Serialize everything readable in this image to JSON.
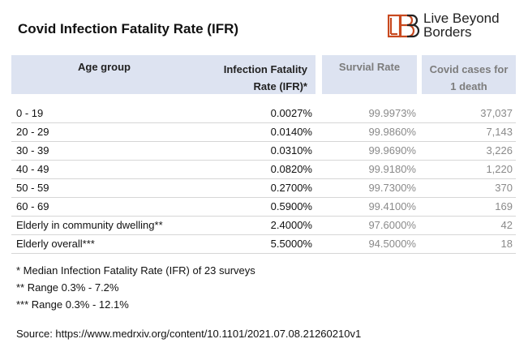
{
  "title": "Covid Infection Fatality Rate (IFR)",
  "logo": {
    "mark": "LBB",
    "line1": "Live Beyond",
    "line2": "Borders",
    "color": "#c8491f"
  },
  "header": {
    "age_group": "Age  group",
    "ifr_line1": "Infection Fatality",
    "ifr_line2": "Rate (IFR)*",
    "survival": "Survial Rate",
    "cases_line1": "Covid cases for",
    "cases_line2": "1 death"
  },
  "rows": [
    {
      "age": "0 - 19",
      "ifr": "0.0027%",
      "survival": "99.9973%",
      "cases": "37,037"
    },
    {
      "age": "20 - 29",
      "ifr": "0.0140%",
      "survival": "99.9860%",
      "cases": "7,143"
    },
    {
      "age": "30 - 39",
      "ifr": "0.0310%",
      "survival": "99.9690%",
      "cases": "3,226"
    },
    {
      "age": "40 - 49",
      "ifr": "0.0820%",
      "survival": "99.9180%",
      "cases": "1,220"
    },
    {
      "age": "50 - 59",
      "ifr": "0.2700%",
      "survival": "99.7300%",
      "cases": "370"
    },
    {
      "age": "60 - 69",
      "ifr": "0.5900%",
      "survival": "99.4100%",
      "cases": "169"
    },
    {
      "age": "Elderly in community dwelling**",
      "ifr": "2.4000%",
      "survival": "97.6000%",
      "cases": "42"
    },
    {
      "age": "Elderly overall***",
      "ifr": "5.5000%",
      "survival": "94.5000%",
      "cases": "18"
    }
  ],
  "notes": [
    "* Median Infection Fatality Rate (IFR) of 23 surveys",
    "** Range 0.3% - 7.2%",
    "*** Range 0.3% - 12.1%"
  ],
  "source": "Source: https://www.medrxiv.org/content/10.1101/2021.07.08.21260210v1"
}
